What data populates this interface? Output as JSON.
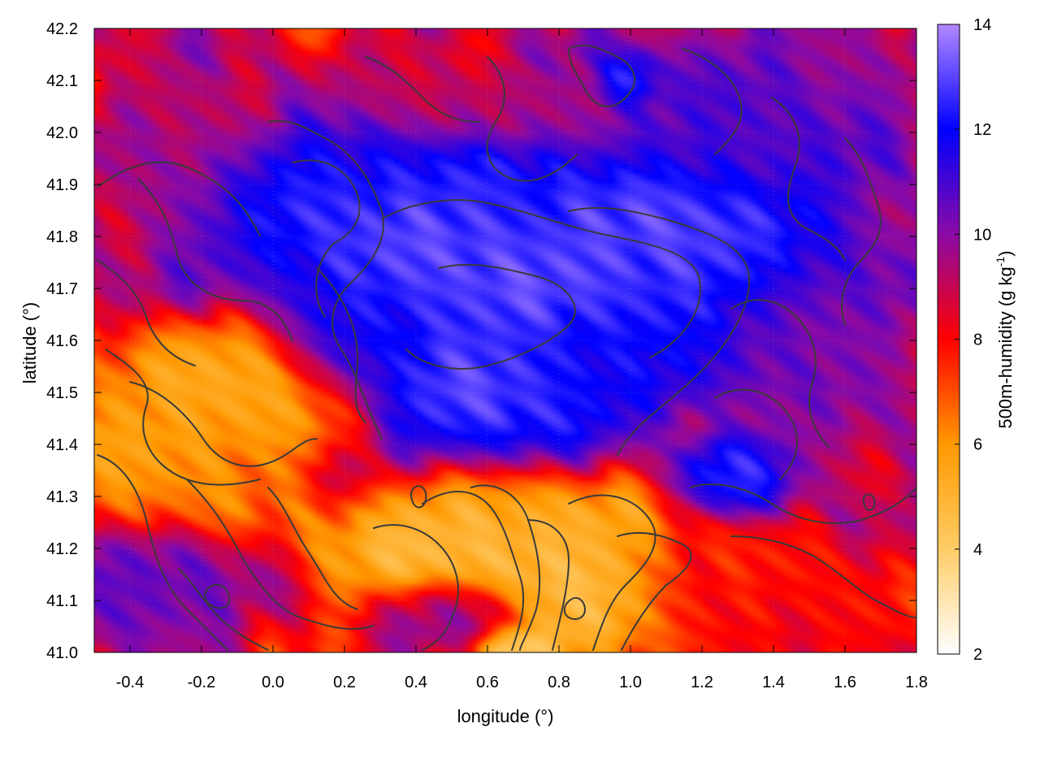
{
  "chart_data": {
    "type": "heatmap",
    "title": "",
    "xlabel": "longitude (°)",
    "ylabel": "latitude (°)",
    "colorbar_label": "500m-humidity (g kg-1)",
    "colorbar_label_main": "500m-humidity (g kg",
    "colorbar_label_sup": "-1",
    "colorbar_label_close": ")",
    "xlim": [
      -0.5,
      1.8
    ],
    "ylim": [
      41.0,
      42.2
    ],
    "clim": [
      2,
      14
    ],
    "x_ticks": [
      -0.4,
      -0.2,
      0.0,
      0.2,
      0.4,
      0.6,
      0.8,
      1.0,
      1.2,
      1.4,
      1.6,
      1.8
    ],
    "x_tick_labels": [
      "-0.4",
      "-0.2",
      "0.0",
      "0.2",
      "0.4",
      "0.6",
      "0.8",
      "1.0",
      "1.2",
      "1.4",
      "1.6",
      "1.8"
    ],
    "y_ticks": [
      41.0,
      41.1,
      41.2,
      41.3,
      41.4,
      41.5,
      41.6,
      41.7,
      41.8,
      41.9,
      42.0,
      42.1,
      42.2
    ],
    "y_tick_labels": [
      "41.0",
      "41.1",
      "41.2",
      "41.3",
      "41.4",
      "41.5",
      "41.6",
      "41.7",
      "41.8",
      "41.9",
      "42.0",
      "42.1",
      "42.2"
    ],
    "colorbar_ticks": [
      2,
      4,
      6,
      8,
      10,
      12,
      14
    ],
    "colorbar_tick_labels": [
      "2",
      "4",
      "6",
      "8",
      "10",
      "12",
      "14"
    ],
    "colormap": [
      {
        "value": 2,
        "color": "#ffffff"
      },
      {
        "value": 4,
        "color": "#ffcc66"
      },
      {
        "value": 6,
        "color": "#ff9900"
      },
      {
        "value": 8,
        "color": "#ff0000"
      },
      {
        "value": 10,
        "color": "#8b0aa5"
      },
      {
        "value": 12,
        "color": "#0000ff"
      },
      {
        "value": 14,
        "color": "#b388ff"
      }
    ],
    "grid": true,
    "humidity_features": [
      {
        "lon": 0.55,
        "lat": 41.75,
        "value": 13.6,
        "spread_lon": 0.35,
        "spread_lat": 0.18
      },
      {
        "lon": 1.2,
        "lat": 41.78,
        "value": 13.8,
        "spread_lon": 0.35,
        "spread_lat": 0.15
      },
      {
        "lon": 0.1,
        "lat": 41.85,
        "value": 13.0,
        "spread_lon": 0.3,
        "spread_lat": 0.12
      },
      {
        "lon": 0.6,
        "lat": 41.5,
        "value": 13.4,
        "spread_lon": 0.25,
        "spread_lat": 0.1
      },
      {
        "lon": 1.0,
        "lat": 41.55,
        "value": 12.2,
        "spread_lon": 0.3,
        "spread_lat": 0.08
      },
      {
        "lon": 1.3,
        "lat": 41.35,
        "value": 13.2,
        "spread_lon": 0.12,
        "spread_lat": 0.06
      },
      {
        "lon": 1.5,
        "lat": 41.6,
        "value": 10.2,
        "spread_lon": 0.25,
        "spread_lat": 0.2
      },
      {
        "lon": 0.6,
        "lat": 42.05,
        "value": 9.2,
        "spread_lon": 0.2,
        "spread_lat": 0.06
      },
      {
        "lon": 0.35,
        "lat": 42.1,
        "value": 9.0,
        "spread_lon": 0.15,
        "spread_lat": 0.06
      },
      {
        "lon": 1.3,
        "lat": 42.05,
        "value": 11.0,
        "spread_lon": 0.35,
        "spread_lat": 0.12
      },
      {
        "lon": 1.0,
        "lat": 42.1,
        "value": 13.5,
        "spread_lon": 0.06,
        "spread_lat": 0.04
      },
      {
        "lon": -0.25,
        "lat": 41.95,
        "value": 9.5,
        "spread_lon": 0.2,
        "spread_lat": 0.15
      },
      {
        "lon": -0.35,
        "lat": 41.4,
        "value": 5.5,
        "spread_lon": 0.25,
        "spread_lat": 0.12
      },
      {
        "lon": -0.1,
        "lat": 41.5,
        "value": 5.0,
        "spread_lon": 0.25,
        "spread_lat": 0.1
      },
      {
        "lon": 0.6,
        "lat": 41.2,
        "value": 4.2,
        "spread_lon": 0.35,
        "spread_lat": 0.1
      },
      {
        "lon": 0.9,
        "lat": 41.1,
        "value": 4.0,
        "spread_lon": 0.15,
        "spread_lat": 0.08
      },
      {
        "lon": 0.7,
        "lat": 41.0,
        "value": 3.2,
        "spread_lon": 0.1,
        "spread_lat": 0.04
      },
      {
        "lon": -0.35,
        "lat": 41.12,
        "value": 11.0,
        "spread_lon": 0.2,
        "spread_lat": 0.08
      },
      {
        "lon": 0.5,
        "lat": 41.08,
        "value": 10.5,
        "spread_lon": 0.15,
        "spread_lat": 0.05
      },
      {
        "lon": 1.4,
        "lat": 41.1,
        "value": 7.8,
        "spread_lon": 0.35,
        "spread_lat": 0.1
      },
      {
        "lon": 0.2,
        "lat": 41.6,
        "value": 12.0,
        "spread_lon": 0.12,
        "spread_lat": 0.08
      }
    ]
  }
}
